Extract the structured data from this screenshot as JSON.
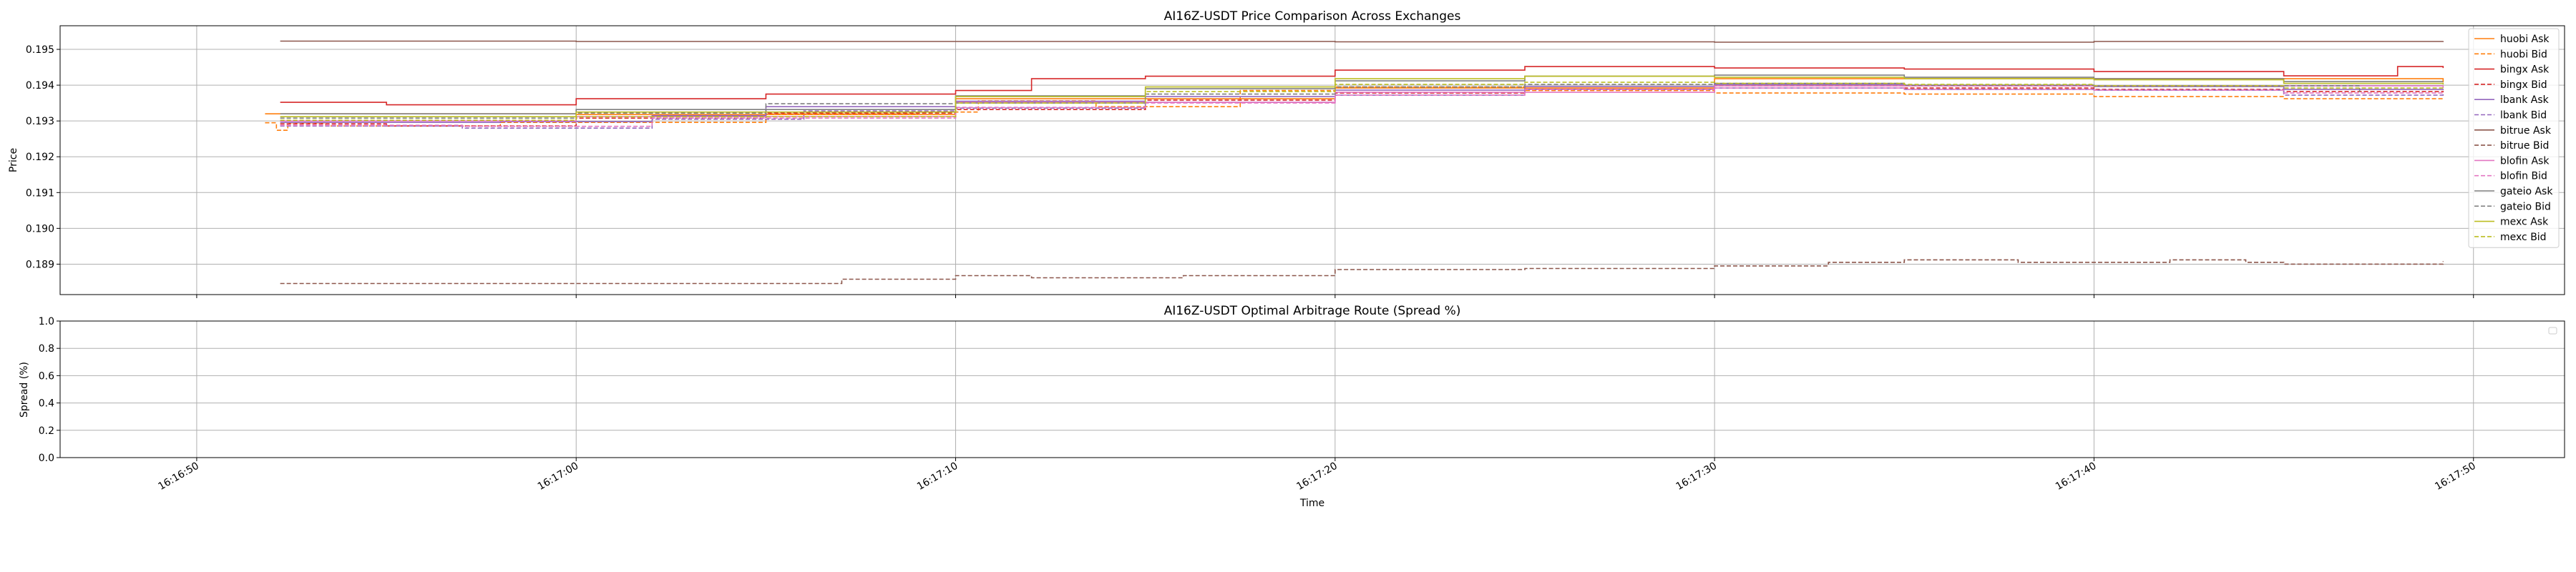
{
  "chart_data": [
    {
      "type": "line",
      "title": "AI16Z-USDT Price Comparison Across Exchanges",
      "xlabel": "",
      "ylabel": "Price",
      "ylim": [
        0.18815,
        0.19566
      ],
      "yticks": [
        "0.189",
        "0.190",
        "0.191",
        "0.192",
        "0.193",
        "0.194",
        "0.195"
      ],
      "x_range_seconds": [
        -3.6,
        62.4
      ],
      "grid": true,
      "legend_position": "right",
      "series": [
        {
          "name": "huobi Ask",
          "color": "#ff7f0e",
          "dash": false,
          "x": [
            1.8,
            10.0,
            20.0,
            30.0,
            40.0,
            50.0,
            59.2
          ],
          "y": [
            0.1932,
            0.19318,
            0.19362,
            0.19392,
            0.19418,
            0.19418,
            0.19408
          ]
        },
        {
          "name": "huobi Bid",
          "color": "#ff7f0e",
          "dash": true,
          "x": [
            1.8,
            2.1,
            2.4,
            3.4,
            8.0,
            15.0,
            19.0,
            20.6,
            23.7,
            27.5,
            30.0,
            35.0,
            40.0,
            45.0,
            50.0,
            55.0,
            59.2
          ],
          "y": [
            0.19295,
            0.19274,
            0.19295,
            0.19286,
            0.19296,
            0.1932,
            0.19325,
            0.19356,
            0.1934,
            0.19385,
            0.19395,
            0.19385,
            0.19378,
            0.19375,
            0.19368,
            0.19362,
            0.1936
          ]
        },
        {
          "name": "bingx Ask",
          "color": "#d62728",
          "dash": false,
          "x": [
            2.2,
            5.0,
            10.0,
            15.0,
            20.0,
            22.0,
            25.0,
            30.0,
            35.0,
            40.0,
            45.0,
            50.0,
            55.0,
            58.0,
            59.2
          ],
          "y": [
            0.19352,
            0.19345,
            0.19362,
            0.19375,
            0.19385,
            0.19418,
            0.19425,
            0.19442,
            0.19452,
            0.19448,
            0.19445,
            0.19438,
            0.19426,
            0.19452,
            0.19448
          ]
        },
        {
          "name": "bingx Bid",
          "color": "#d62728",
          "dash": true,
          "x": [
            2.2,
            5.0,
            10.0,
            15.0,
            20.0,
            25.0,
            30.0,
            35.0,
            40.0,
            45.0,
            50.0,
            55.0,
            59.2
          ],
          "y": [
            0.19292,
            0.19286,
            0.19308,
            0.19322,
            0.19332,
            0.19358,
            0.19378,
            0.19388,
            0.19398,
            0.19392,
            0.19388,
            0.19382,
            0.1938
          ]
        },
        {
          "name": "lbank Ask",
          "color": "#9467bd",
          "dash": false,
          "x": [
            2.2,
            8.0,
            12.0,
            15.0,
            20.0,
            25.0,
            30.0,
            35.0,
            40.0,
            45.0,
            50.0,
            55.0,
            59.2
          ],
          "y": [
            0.19296,
            0.19298,
            0.19315,
            0.1934,
            0.19355,
            0.19368,
            0.19386,
            0.19396,
            0.19402,
            0.19398,
            0.19396,
            0.19388,
            0.19386
          ]
        },
        {
          "name": "lbank Bid",
          "color": "#9467bd",
          "dash": true,
          "x": [
            2.2,
            7.0,
            12.0,
            16.0,
            20.0,
            25.0,
            30.0,
            35.0,
            40.0,
            45.0,
            50.0,
            55.0,
            59.2
          ],
          "y": [
            0.19286,
            0.1928,
            0.19305,
            0.19328,
            0.19336,
            0.19352,
            0.19372,
            0.19388,
            0.19392,
            0.19388,
            0.19386,
            0.19372,
            0.19378
          ]
        },
        {
          "name": "bitrue Ask",
          "color": "#8c564b",
          "dash": false,
          "x": [
            2.2,
            10.0,
            20.0,
            30.0,
            40.0,
            50.0,
            59.2
          ],
          "y": [
            0.19523,
            0.19522,
            0.19522,
            0.19521,
            0.1952,
            0.19522,
            0.19523
          ]
        },
        {
          "name": "bitrue Bid",
          "color": "#8c564b",
          "dash": true,
          "x": [
            2.2,
            8.0,
            13.0,
            17.0,
            20.0,
            22.0,
            26.0,
            30.0,
            35.0,
            40.0,
            43.0,
            45.0,
            48.0,
            52.0,
            54.0,
            55.0,
            59.2
          ],
          "y": [
            0.18846,
            0.18846,
            0.18846,
            0.18858,
            0.18868,
            0.18862,
            0.18868,
            0.18885,
            0.18888,
            0.18895,
            0.18905,
            0.18912,
            0.18905,
            0.18912,
            0.18905,
            0.189,
            0.18908
          ]
        },
        {
          "name": "blofin Ask",
          "color": "#e377c2",
          "dash": false,
          "x": [
            2.2,
            10.0,
            20.0,
            30.0,
            40.0,
            50.0,
            59.2
          ],
          "y": [
            0.193,
            0.19312,
            0.19352,
            0.1938,
            0.19398,
            0.19398,
            0.19392
          ]
        },
        {
          "name": "blofin Bid",
          "color": "#e377c2",
          "dash": true,
          "x": [
            2.2,
            7.0,
            12.0,
            20.0,
            25.0,
            30.0,
            35.0,
            40.0,
            45.0,
            50.0,
            55.0,
            59.2
          ],
          "y": [
            0.19288,
            0.19285,
            0.19308,
            0.19338,
            0.1935,
            0.19372,
            0.19388,
            0.19392,
            0.19388,
            0.19386,
            0.19378,
            0.1938
          ]
        },
        {
          "name": "gateio Ask",
          "color": "#7f7f7f",
          "dash": false,
          "x": [
            2.2,
            10.0,
            20.0,
            25.0,
            30.0,
            35.0,
            40.0,
            45.0,
            50.0,
            55.0,
            59.2
          ],
          "y": [
            0.1932,
            0.19332,
            0.1937,
            0.1939,
            0.19412,
            0.19425,
            0.19428,
            0.19422,
            0.19418,
            0.1941,
            0.1941
          ]
        },
        {
          "name": "gateio Bid",
          "color": "#7f7f7f",
          "dash": true,
          "x": [
            2.2,
            10.0,
            15.0,
            20.0,
            25.0,
            30.0,
            35.0,
            40.0,
            45.0,
            50.0,
            57.0
          ],
          "y": [
            0.19308,
            0.19322,
            0.19348,
            0.1935,
            0.19375,
            0.19395,
            0.19402,
            0.19405,
            0.194,
            0.19398,
            0.19375
          ]
        },
        {
          "name": "mexc Ask",
          "color": "#bcbd22",
          "dash": false,
          "x": [
            2.2,
            10.0,
            20.0,
            25.0,
            30.0,
            35.0,
            40.0,
            45.0,
            50.0,
            55.0,
            59.2
          ],
          "y": [
            0.19312,
            0.19325,
            0.19368,
            0.19395,
            0.19418,
            0.19425,
            0.19422,
            0.19418,
            0.19415,
            0.19405,
            0.19402
          ]
        },
        {
          "name": "mexc Bid",
          "color": "#bcbd22",
          "dash": true,
          "x": [
            2.2,
            10.0,
            20.0,
            25.0,
            30.0,
            35.0,
            40.0,
            45.0,
            50.0,
            55.0,
            59.2
          ],
          "y": [
            0.19302,
            0.19312,
            0.1935,
            0.19382,
            0.19402,
            0.19408,
            0.19405,
            0.19402,
            0.19398,
            0.19392,
            0.19392
          ]
        }
      ]
    },
    {
      "type": "line",
      "title": "AI16Z-USDT Optimal Arbitrage Route (Spread %)",
      "xlabel": "Time",
      "ylabel": "Spread (%)",
      "ylim": [
        0.0,
        1.0
      ],
      "yticks": [
        "0.0",
        "0.2",
        "0.4",
        "0.6",
        "0.8",
        "1.0"
      ],
      "xticks": [
        "16:16:50",
        "16:17:00",
        "16:17:10",
        "16:17:20",
        "16:17:30",
        "16:17:40",
        "16:17:50"
      ],
      "x_range_seconds": [
        -3.6,
        62.4
      ],
      "grid": true,
      "series": []
    }
  ]
}
